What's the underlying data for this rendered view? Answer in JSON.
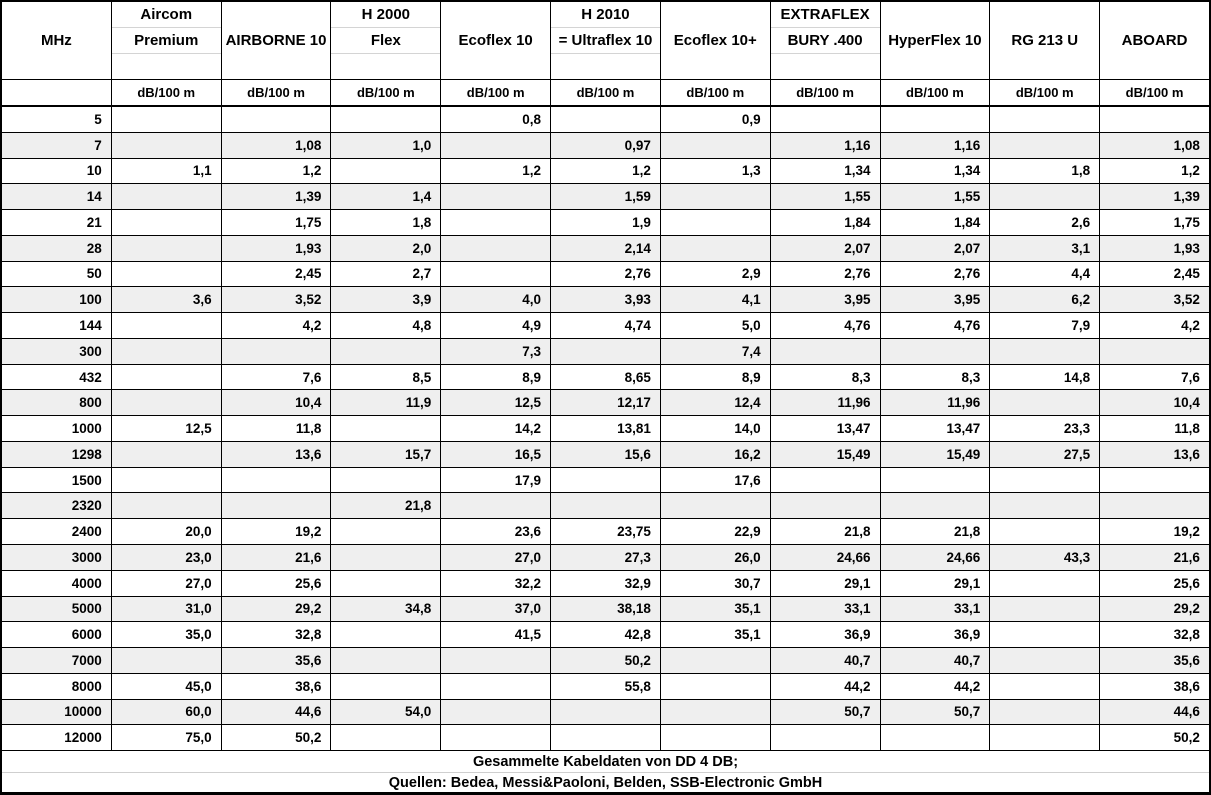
{
  "header": {
    "freq_label": "MHz",
    "unit_label": "dB/100 m",
    "cables": [
      {
        "lines": [
          "Aircom",
          "Premium"
        ]
      },
      {
        "lines": [
          "AIRBORNE 10"
        ]
      },
      {
        "lines": [
          "H 2000",
          "Flex"
        ]
      },
      {
        "lines": [
          "Ecoflex 10"
        ]
      },
      {
        "lines": [
          "H 2010",
          "= Ultraflex 10"
        ]
      },
      {
        "lines": [
          "Ecoflex 10+"
        ]
      },
      {
        "lines": [
          "EXTRAFLEX",
          "BURY .400"
        ]
      },
      {
        "lines": [
          "HyperFlex 10"
        ]
      },
      {
        "lines": [
          "RG 213 U"
        ]
      },
      {
        "lines": [
          "ABOARD"
        ]
      }
    ]
  },
  "rows": [
    {
      "mhz": "5",
      "values": [
        "",
        "",
        "",
        "0,8",
        "",
        "0,9",
        "",
        "",
        "",
        ""
      ]
    },
    {
      "mhz": "7",
      "values": [
        "",
        "1,08",
        "1,0",
        "",
        "0,97",
        "",
        "1,16",
        "1,16",
        "",
        "1,08"
      ]
    },
    {
      "mhz": "10",
      "values": [
        "1,1",
        "1,2",
        "",
        "1,2",
        "1,2",
        "1,3",
        "1,34",
        "1,34",
        "1,8",
        "1,2"
      ]
    },
    {
      "mhz": "14",
      "values": [
        "",
        "1,39",
        "1,4",
        "",
        "1,59",
        "",
        "1,55",
        "1,55",
        "",
        "1,39"
      ]
    },
    {
      "mhz": "21",
      "values": [
        "",
        "1,75",
        "1,8",
        "",
        "1,9",
        "",
        "1,84",
        "1,84",
        "2,6",
        "1,75"
      ]
    },
    {
      "mhz": "28",
      "values": [
        "",
        "1,93",
        "2,0",
        "",
        "2,14",
        "",
        "2,07",
        "2,07",
        "3,1",
        "1,93"
      ]
    },
    {
      "mhz": "50",
      "values": [
        "",
        "2,45",
        "2,7",
        "",
        "2,76",
        "2,9",
        "2,76",
        "2,76",
        "4,4",
        "2,45"
      ]
    },
    {
      "mhz": "100",
      "values": [
        "3,6",
        "3,52",
        "3,9",
        "4,0",
        "3,93",
        "4,1",
        "3,95",
        "3,95",
        "6,2",
        "3,52"
      ]
    },
    {
      "mhz": "144",
      "values": [
        "",
        "4,2",
        "4,8",
        "4,9",
        "4,74",
        "5,0",
        "4,76",
        "4,76",
        "7,9",
        "4,2"
      ]
    },
    {
      "mhz": "300",
      "values": [
        "",
        "",
        "",
        "7,3",
        "",
        "7,4",
        "",
        "",
        "",
        ""
      ]
    },
    {
      "mhz": "432",
      "values": [
        "",
        "7,6",
        "8,5",
        "8,9",
        "8,65",
        "8,9",
        "8,3",
        "8,3",
        "14,8",
        "7,6"
      ]
    },
    {
      "mhz": "800",
      "values": [
        "",
        "10,4",
        "11,9",
        "12,5",
        "12,17",
        "12,4",
        "11,96",
        "11,96",
        "",
        "10,4"
      ]
    },
    {
      "mhz": "1000",
      "values": [
        "12,5",
        "11,8",
        "",
        "14,2",
        "13,81",
        "14,0",
        "13,47",
        "13,47",
        "23,3",
        "11,8"
      ]
    },
    {
      "mhz": "1298",
      "values": [
        "",
        "13,6",
        "15,7",
        "16,5",
        "15,6",
        "16,2",
        "15,49",
        "15,49",
        "27,5",
        "13,6"
      ]
    },
    {
      "mhz": "1500",
      "values": [
        "",
        "",
        "",
        "17,9",
        "",
        "17,6",
        "",
        "",
        "",
        ""
      ]
    },
    {
      "mhz": "2320",
      "values": [
        "",
        "",
        "21,8",
        "",
        "",
        "",
        "",
        "",
        "",
        ""
      ]
    },
    {
      "mhz": "2400",
      "values": [
        "20,0",
        "19,2",
        "",
        "23,6",
        "23,75",
        "22,9",
        "21,8",
        "21,8",
        "",
        "19,2"
      ]
    },
    {
      "mhz": "3000",
      "values": [
        "23,0",
        "21,6",
        "",
        "27,0",
        "27,3",
        "26,0",
        "24,66",
        "24,66",
        "43,3",
        "21,6"
      ]
    },
    {
      "mhz": "4000",
      "values": [
        "27,0",
        "25,6",
        "",
        "32,2",
        "32,9",
        "30,7",
        "29,1",
        "29,1",
        "",
        "25,6"
      ]
    },
    {
      "mhz": "5000",
      "values": [
        "31,0",
        "29,2",
        "34,8",
        "37,0",
        "38,18",
        "35,1",
        "33,1",
        "33,1",
        "",
        "29,2"
      ]
    },
    {
      "mhz": "6000",
      "values": [
        "35,0",
        "32,8",
        "",
        "41,5",
        "42,8",
        "35,1",
        "36,9",
        "36,9",
        "",
        "32,8"
      ]
    },
    {
      "mhz": "7000",
      "values": [
        "",
        "35,6",
        "",
        "",
        "50,2",
        "",
        "40,7",
        "40,7",
        "",
        "35,6"
      ]
    },
    {
      "mhz": "8000",
      "values": [
        "45,0",
        "38,6",
        "",
        "",
        "55,8",
        "",
        "44,2",
        "44,2",
        "",
        "38,6"
      ]
    },
    {
      "mhz": "10000",
      "values": [
        "60,0",
        "44,6",
        "54,0",
        "",
        "",
        "",
        "50,7",
        "50,7",
        "",
        "44,6"
      ]
    },
    {
      "mhz": "12000",
      "values": [
        "75,0",
        "50,2",
        "",
        "",
        "",
        "",
        "",
        "",
        "",
        "50,2"
      ]
    }
  ],
  "footer": {
    "line1": "Gesammelte Kabeldaten von DD 4 DB;",
    "line2": "Quellen: Bedea, Messi&Paoloni, Belden, SSB-Electronic GmbH"
  },
  "colors": {
    "stripe": "#efefef",
    "border": "#000000",
    "header_divider": "#d4d4d4"
  }
}
